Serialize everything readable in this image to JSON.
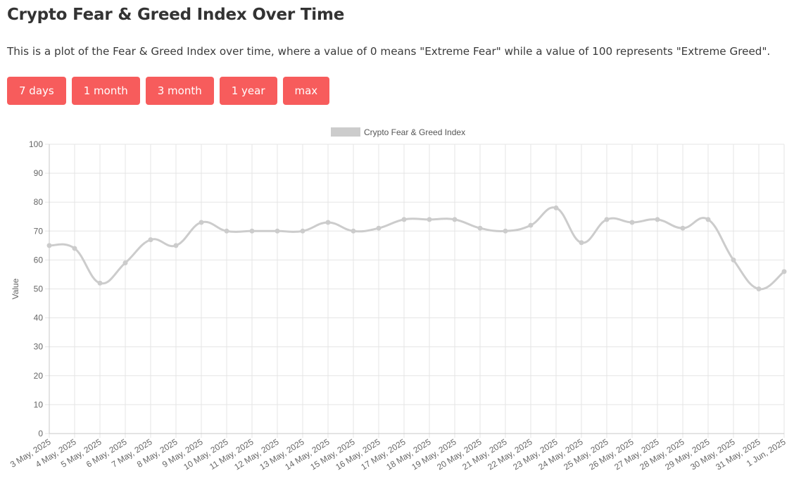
{
  "header": {
    "title": "Crypto Fear & Greed Index Over Time",
    "description": "This is a plot of the Fear & Greed Index over time, where a value of 0 means \"Extreme Fear\" while a value of 100 represents \"Extreme Greed\"."
  },
  "range_buttons": [
    {
      "label": "7 days"
    },
    {
      "label": "1 month"
    },
    {
      "label": "3 month"
    },
    {
      "label": "1 year"
    },
    {
      "label": "max"
    }
  ],
  "colors": {
    "button_bg": "#f75c5c",
    "line": "#cccccc",
    "grid": "#e5e5e5",
    "axis_text": "#666666"
  },
  "chart_data": {
    "type": "line",
    "title": "",
    "xlabel": "",
    "ylabel": "Value",
    "ylim": [
      0,
      100
    ],
    "yticks": [
      0,
      10,
      20,
      30,
      40,
      50,
      60,
      70,
      80,
      90,
      100
    ],
    "grid": true,
    "legend_position": "top",
    "categories": [
      "3 May, 2025",
      "4 May, 2025",
      "5 May, 2025",
      "6 May, 2025",
      "7 May, 2025",
      "8 May, 2025",
      "9 May, 2025",
      "10 May, 2025",
      "11 May, 2025",
      "12 May, 2025",
      "13 May, 2025",
      "14 May, 2025",
      "15 May, 2025",
      "16 May, 2025",
      "17 May, 2025",
      "18 May, 2025",
      "19 May, 2025",
      "20 May, 2025",
      "21 May, 2025",
      "22 May, 2025",
      "23 May, 2025",
      "24 May, 2025",
      "25 May, 2025",
      "26 May, 2025",
      "27 May, 2025",
      "28 May, 2025",
      "29 May, 2025",
      "30 May, 2025",
      "31 May, 2025",
      "1 Jun, 2025"
    ],
    "series": [
      {
        "name": "Crypto Fear & Greed Index",
        "color": "#cccccc",
        "values": [
          65,
          64,
          52,
          59,
          67,
          65,
          73,
          70,
          70,
          70,
          70,
          73,
          70,
          71,
          74,
          74,
          74,
          71,
          70,
          72,
          78,
          66,
          74,
          73,
          74,
          71,
          74,
          60,
          50,
          56
        ]
      }
    ]
  }
}
